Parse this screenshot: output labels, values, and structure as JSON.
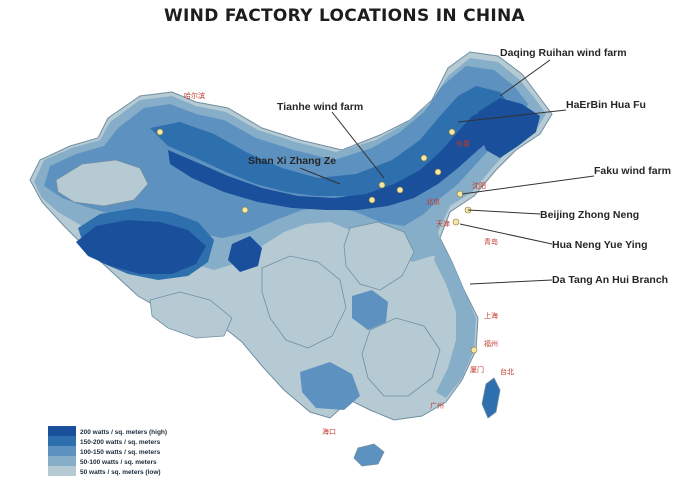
{
  "title": "WIND FACTORY LOCATIONS IN CHINA",
  "map_labels": [
    {
      "id": "daqing",
      "text": "Daqing Ruihan wind farm"
    },
    {
      "id": "haerbin",
      "text": "HaErBin Hua Fu"
    },
    {
      "id": "tianhe",
      "text": "Tianhe wind farm"
    },
    {
      "id": "shanxi",
      "text": "Shan Xi Zhang Ze"
    },
    {
      "id": "faku",
      "text": "Faku wind farm"
    },
    {
      "id": "beijing",
      "text": "Beijing Zhong Neng"
    },
    {
      "id": "huaneng",
      "text": "Hua Neng Yue Ying"
    },
    {
      "id": "datang",
      "text": "Da Tang An Hui Branch"
    }
  ],
  "legend": [
    {
      "label": "200 watts / sq. meters (high)",
      "color": "#1a4f9c"
    },
    {
      "label": "150-200 watts / sq. meters",
      "color": "#2e6fae"
    },
    {
      "label": "100-150 watts / sq. meters",
      "color": "#5d92c0"
    },
    {
      "label": "50-100 watts / sq. meters",
      "color": "#86aec8"
    },
    {
      "label": "50 watts / sq. meters (low)",
      "color": "#b6cad4"
    }
  ],
  "colors": {
    "high": "#1a4f9c",
    "upper": "#2e6fae",
    "mid": "#5d92c0",
    "lower": "#86aec8",
    "low": "#b6cad4",
    "marker": "#f4e6a6",
    "city_text": "#c0392b"
  },
  "city_labels": [
    "哈尔滨",
    "长春",
    "沈阳",
    "北京",
    "天津",
    "青岛",
    "上海",
    "福州",
    "厦门",
    "广州",
    "海口",
    "台北"
  ]
}
